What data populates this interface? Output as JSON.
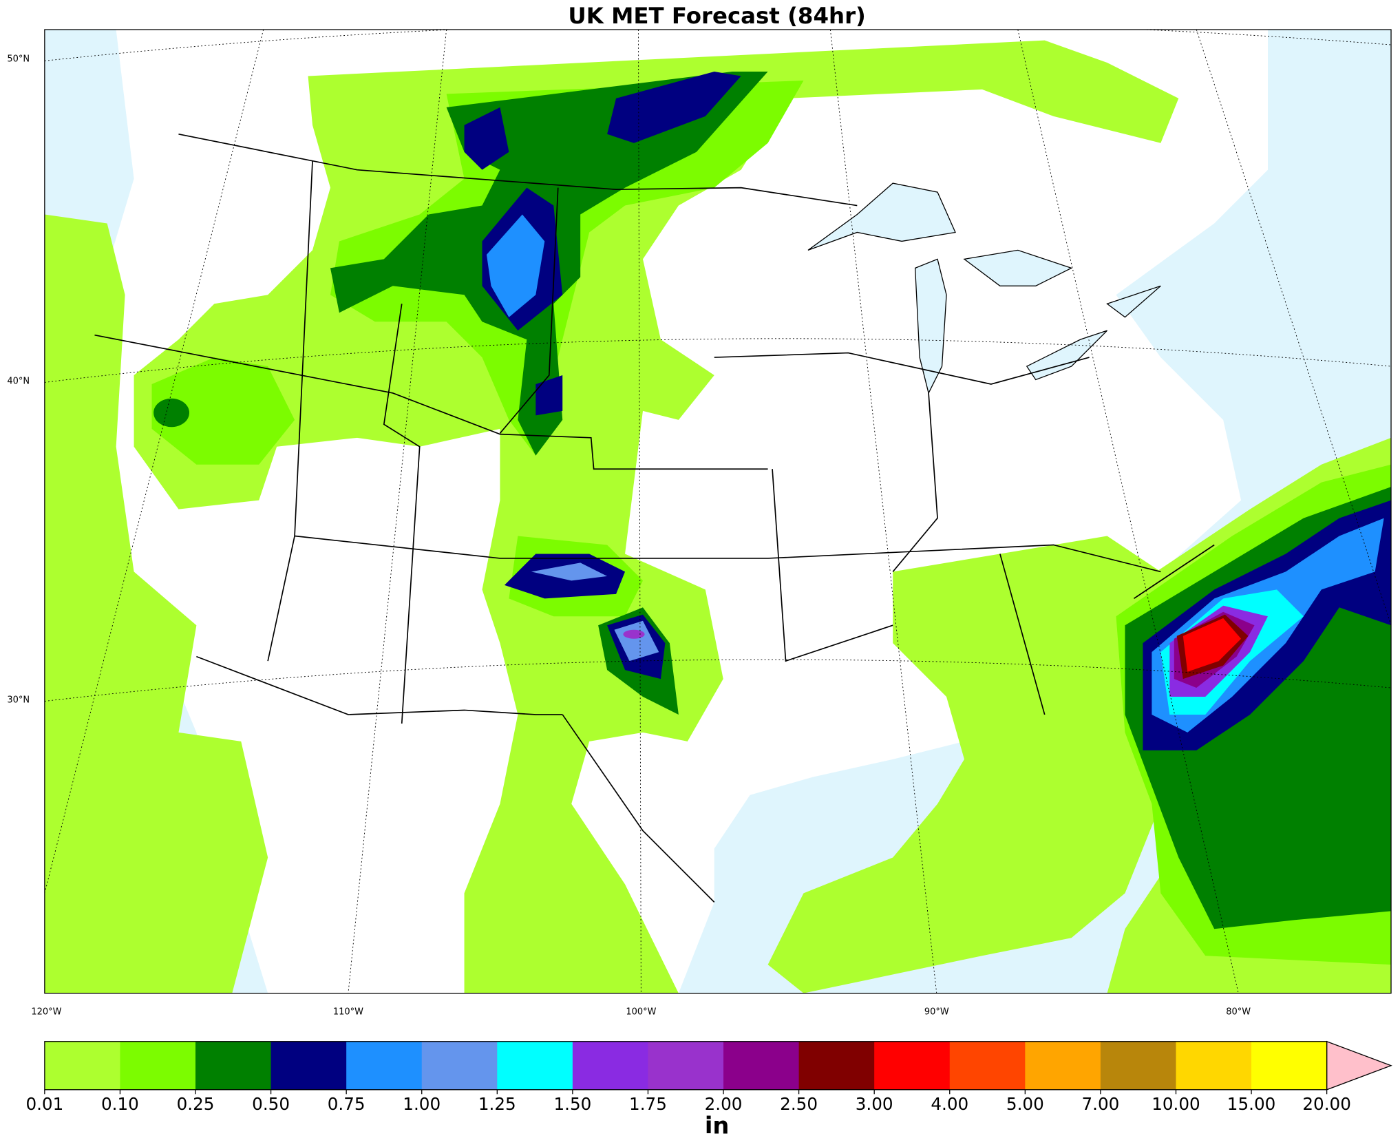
{
  "chart_data": {
    "type": "map",
    "title": "UK MET Forecast (84hr)",
    "lat_labels": [
      "50°N",
      "40°N",
      "30°N"
    ],
    "lon_labels": [
      "120°W",
      "110°W",
      "100°W",
      "90°W",
      "80°W"
    ],
    "colorbar_label": "in",
    "colorbar_ticks": [
      0.01,
      {
        "value": 0.1,
        "label": "0.10"
      },
      0.25,
      {
        "value": 0.5,
        "label": "0.50"
      },
      0.75,
      {
        "value": 1,
        "label": "1.00"
      },
      1.25,
      {
        "value": 1.5,
        "label": "1.50"
      },
      1.75,
      {
        "value": 2,
        "label": "2.00"
      },
      {
        "value": 2.5,
        "label": "2.50"
      },
      {
        "value": 3,
        "label": "3.00"
      },
      {
        "value": 4,
        "label": "4.00"
      },
      {
        "value": 5,
        "label": "5.00"
      },
      {
        "value": 7,
        "label": "7.00"
      },
      {
        "value": 10,
        "label": "10.00"
      },
      {
        "value": 15,
        "label": "15.00"
      },
      {
        "value": 20,
        "label": "20.00"
      }
    ],
    "colors": [
      "#adff2f",
      "#7cfc00",
      "#008000",
      "#000080",
      "#1e90ff",
      "#6495ed",
      "#00ffff",
      "#8a2be2",
      "#9932cc",
      "#8b008b",
      "#800000",
      "#ff0000",
      "#ff4500",
      "#ffa500",
      "#b8860b",
      "#ffd700",
      "#ffff00"
    ],
    "extend_color": "#ffc0cb"
  }
}
